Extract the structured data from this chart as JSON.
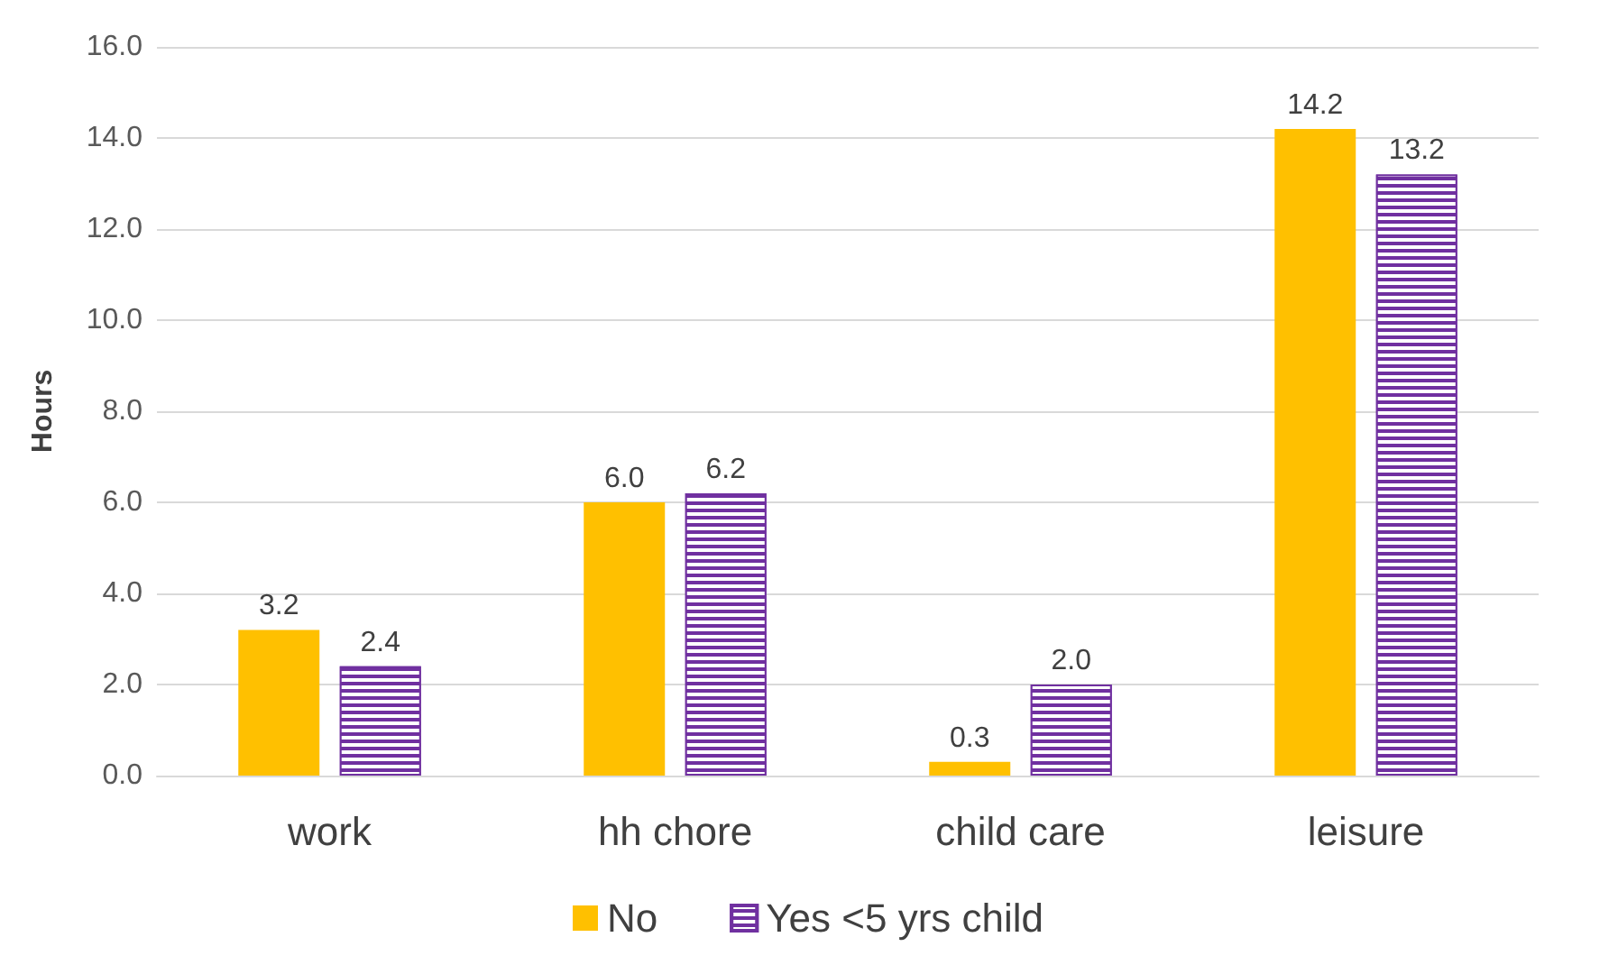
{
  "chart_data": {
    "type": "bar",
    "ylabel": "Hours",
    "categories": [
      "work",
      "hh chore",
      "child care",
      "leisure"
    ],
    "series": [
      {
        "name": "No",
        "color": "#ffc000",
        "values": [
          3.2,
          6.0,
          0.3,
          14.2
        ],
        "value_labels": [
          "3.2",
          "6.0",
          "0.3",
          "14.2"
        ]
      },
      {
        "name": "Yes <5 yrs child",
        "color": "#7030a0",
        "values": [
          2.4,
          6.2,
          2.0,
          13.2
        ],
        "value_labels": [
          "2.4",
          "6.2",
          "2.0",
          "13.2"
        ]
      }
    ],
    "ylim": [
      0,
      16
    ],
    "yticks": [
      {
        "value": 0,
        "label": "0.0"
      },
      {
        "value": 2,
        "label": "2.0"
      },
      {
        "value": 4,
        "label": "4.0"
      },
      {
        "value": 6,
        "label": "6.0"
      },
      {
        "value": 8,
        "label": "8.0"
      },
      {
        "value": 10,
        "label": "10.0"
      },
      {
        "value": 12,
        "label": "12.0"
      },
      {
        "value": 14,
        "label": "14.0"
      },
      {
        "value": 16,
        "label": "16.0"
      }
    ],
    "grid": "y",
    "legend": "bottom"
  }
}
